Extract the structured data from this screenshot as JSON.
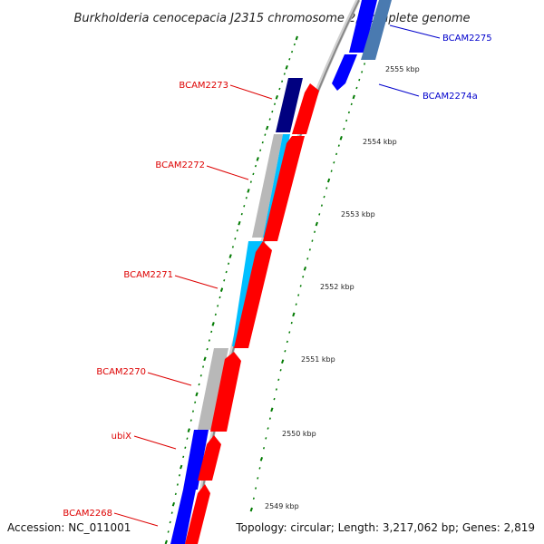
{
  "title": "Burkholderia cenocepacia J2315 chromosome 2, complete genome",
  "accession": "Accession: NC_011001",
  "topology": "Topology: circular; Length: 3,217,062 bp; Genes: 2,819",
  "colors": {
    "reverse_label": "#dd0000",
    "forward_label": "#0000cc",
    "red_gene": "#ff0000",
    "blue_gene": "#0000ff",
    "navy_gene": "#000080",
    "cyan_gene": "#00bfff",
    "grey_gene": "#b8b8b8",
    "steel_gene": "#4a7ab0",
    "backbone": "#888888",
    "gc_ticks": "#007a00",
    "leader": "#dd0000",
    "leader_forward": "#0000cc"
  },
  "genes": [
    {
      "name": "BCAM2275",
      "strand": "forward"
    },
    {
      "name": "BCAM2274a",
      "strand": "forward"
    },
    {
      "name": "BCAM2273",
      "strand": "reverse"
    },
    {
      "name": "BCAM2272",
      "strand": "reverse"
    },
    {
      "name": "BCAM2271",
      "strand": "reverse"
    },
    {
      "name": "BCAM2270",
      "strand": "reverse"
    },
    {
      "name": "ubiX",
      "strand": "reverse"
    },
    {
      "name": "BCAM2268",
      "strand": "reverse"
    }
  ],
  "kbp_ticks": [
    "2555 kbp",
    "2554 kbp",
    "2553 kbp",
    "2552 kbp",
    "2551 kbp",
    "2550 kbp",
    "2549 kbp"
  ]
}
